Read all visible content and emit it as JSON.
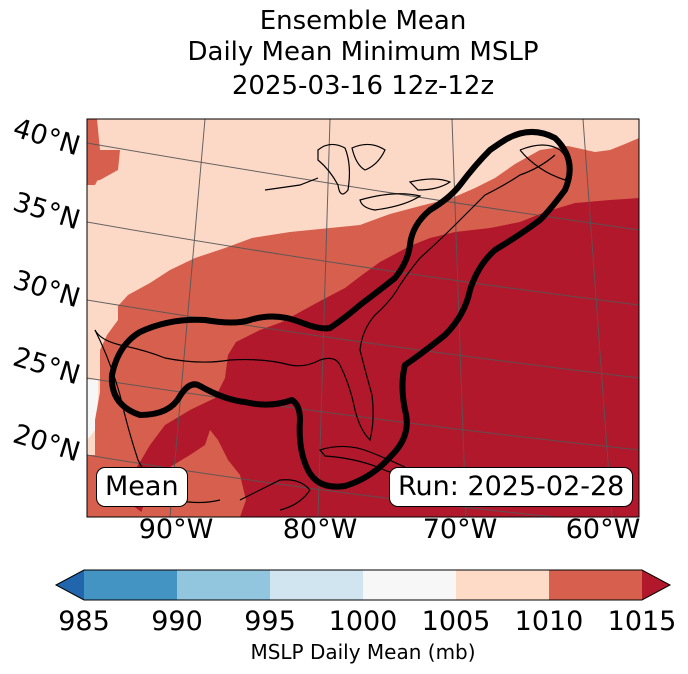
{
  "title": {
    "line1": "Ensemble Mean",
    "line2": "Daily Mean Minimum MSLP",
    "line3": "2025-03-16 12z-12z"
  },
  "map": {
    "lat_labels": [
      "40°N",
      "35°N",
      "30°N",
      "25°N",
      "20°N"
    ],
    "lon_labels": [
      "90°W",
      "80°W",
      "70°W",
      "60°W"
    ],
    "mean_label": "Mean",
    "run_label": "Run: 2025-02-28",
    "contour_value_mb": 1010,
    "fill_colors": {
      "1005-1010": "#fcd9c7",
      "1010-1015": "#d6604d",
      "above-1015": "#b2182b",
      "1000-1005": "#f7f7f7"
    }
  },
  "colorbar": {
    "ticks": [
      "985",
      "990",
      "995",
      "1000",
      "1005",
      "1010",
      "1015"
    ],
    "colors": [
      "#4393c3",
      "#92c5de",
      "#d1e5f0",
      "#f7f7f7",
      "#fddbc7",
      "#d6604d"
    ],
    "under_color": "#2166ac",
    "over_color": "#b2182b",
    "label": "MSLP Daily Mean (mb)"
  }
}
